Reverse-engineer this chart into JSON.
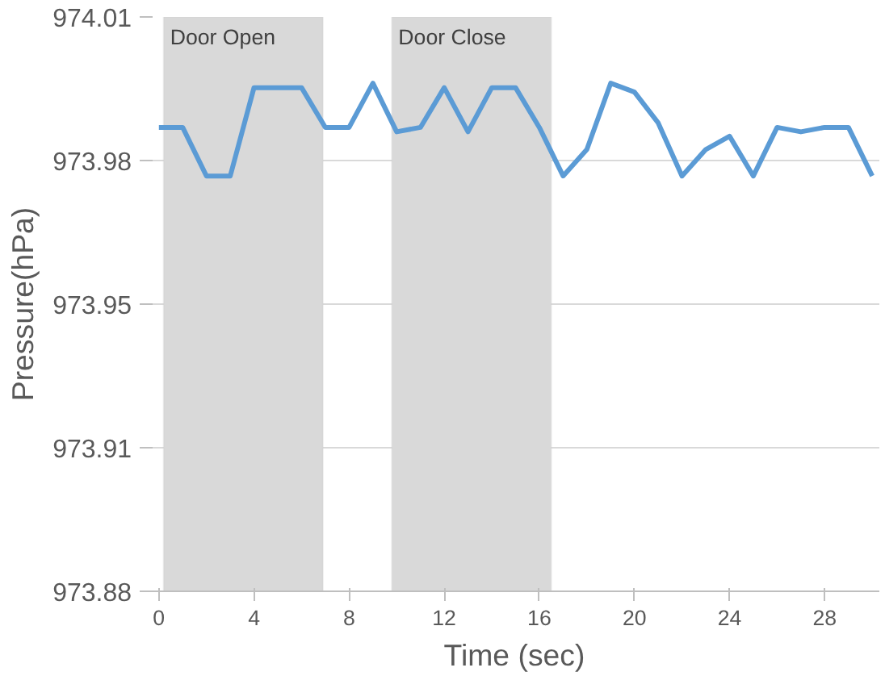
{
  "chart_data": {
    "type": "line",
    "xlabel": "Time (sec)",
    "ylabel": "Pressure(hPa)",
    "x": [
      0,
      1,
      2,
      3,
      4,
      5,
      6,
      7,
      8,
      9,
      10,
      11,
      12,
      13,
      14,
      15,
      16,
      17,
      18,
      19,
      20,
      21,
      22,
      23,
      24,
      25,
      26,
      27,
      28,
      29,
      30
    ],
    "series": [
      {
        "color": "#5b9bd5",
        "values": [
          973.985,
          973.985,
          973.974,
          973.974,
          973.994,
          973.994,
          973.994,
          973.985,
          973.985,
          973.995,
          973.984,
          973.985,
          973.994,
          973.984,
          973.994,
          973.994,
          973.985,
          973.974,
          973.98,
          973.995,
          973.993,
          973.986,
          973.974,
          973.98,
          973.983,
          973.974,
          973.985,
          973.984,
          973.985,
          973.985,
          973.974
        ]
      }
    ],
    "xlim": [
      -0.4,
      30.3
    ],
    "xticks": [
      0,
      4,
      8,
      12,
      16,
      20,
      24,
      28
    ],
    "ylim": [
      973.88,
      974.01
    ],
    "yticks": [
      {
        "value": 973.88,
        "label": "973.88"
      },
      {
        "value": 973.9125,
        "label": "973.91"
      },
      {
        "value": 973.945,
        "label": "973.95"
      },
      {
        "value": 973.9775,
        "label": "973.98"
      },
      {
        "value": 974.01,
        "label": "974.01"
      }
    ],
    "bands": [
      {
        "axis": "x",
        "from": 0.2,
        "to": 6.9,
        "label": "Door Open",
        "color": "#d9d9d9"
      },
      {
        "axis": "x",
        "from": 9.8,
        "to": 16.5,
        "label": "Door Close",
        "color": "#d9d9d9"
      }
    ],
    "grid": "y",
    "marker": "none",
    "line_style": "solid"
  }
}
